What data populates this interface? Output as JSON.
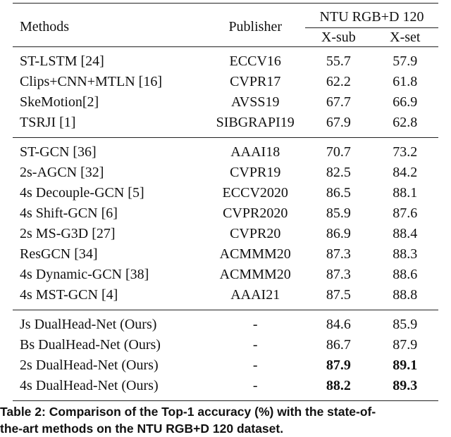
{
  "table": {
    "header": {
      "methods": "Methods",
      "publisher": "Publisher",
      "dataset": "NTU RGB+D 120",
      "xsub": "X-sub",
      "xset": "X-set"
    },
    "groups": [
      [
        {
          "method": "ST-LSTM [24]",
          "publisher": "ECCV16",
          "xsub": "55.7",
          "xset": "57.9"
        },
        {
          "method": "Clips+CNN+MTLN [16]",
          "publisher": "CVPR17",
          "xsub": "62.2",
          "xset": "61.8"
        },
        {
          "method": "SkeMotion[2]",
          "publisher": "AVSS19",
          "xsub": "67.7",
          "xset": "66.9"
        },
        {
          "method": "TSRJI [1]",
          "publisher": "SIBGRAPI19",
          "xsub": "67.9",
          "xset": "62.8"
        }
      ],
      [
        {
          "method": "ST-GCN [36]",
          "publisher": "AAAI18",
          "xsub": "70.7",
          "xset": "73.2"
        },
        {
          "method": "2s-AGCN [32]",
          "publisher": "CVPR19",
          "xsub": "82.5",
          "xset": "84.2"
        },
        {
          "method": "4s Decouple-GCN [5]",
          "publisher": "ECCV2020",
          "xsub": "86.5",
          "xset": "88.1"
        },
        {
          "method": "4s Shift-GCN [6]",
          "publisher": "CVPR2020",
          "xsub": "85.9",
          "xset": "87.6"
        },
        {
          "method": "2s MS-G3D [27]",
          "publisher": "CVPR20",
          "xsub": "86.9",
          "xset": "88.4"
        },
        {
          "method": "ResGCN [34]",
          "publisher": "ACMMM20",
          "xsub": "87.3",
          "xset": "88.3"
        },
        {
          "method": "4s Dynamic-GCN [38]",
          "publisher": "ACMMM20",
          "xsub": "87.3",
          "xset": "88.6"
        },
        {
          "method": "4s MST-GCN [4]",
          "publisher": "AAAI21",
          "xsub": "87.5",
          "xset": "88.8"
        }
      ],
      [
        {
          "method": "Js DualHead-Net (Ours)",
          "publisher": "-",
          "xsub": "84.6",
          "xset": "85.9"
        },
        {
          "method": "Bs DualHead-Net (Ours)",
          "publisher": "-",
          "xsub": "86.7",
          "xset": "87.9"
        },
        {
          "method": "2s DualHead-Net (Ours)",
          "publisher": "-",
          "xsub": "87.9",
          "xset": "89.1",
          "bold": true
        },
        {
          "method": "4s DualHead-Net (Ours)",
          "publisher": "-",
          "xsub": "88.2",
          "xset": "89.3",
          "bold": true
        }
      ]
    ]
  },
  "caption": {
    "label": "Table 2:",
    "line1": "Comparison of the Top-1 accuracy (%) with the state-of-",
    "line2": "the-art methods on the NTU RGB+D 120 dataset."
  }
}
